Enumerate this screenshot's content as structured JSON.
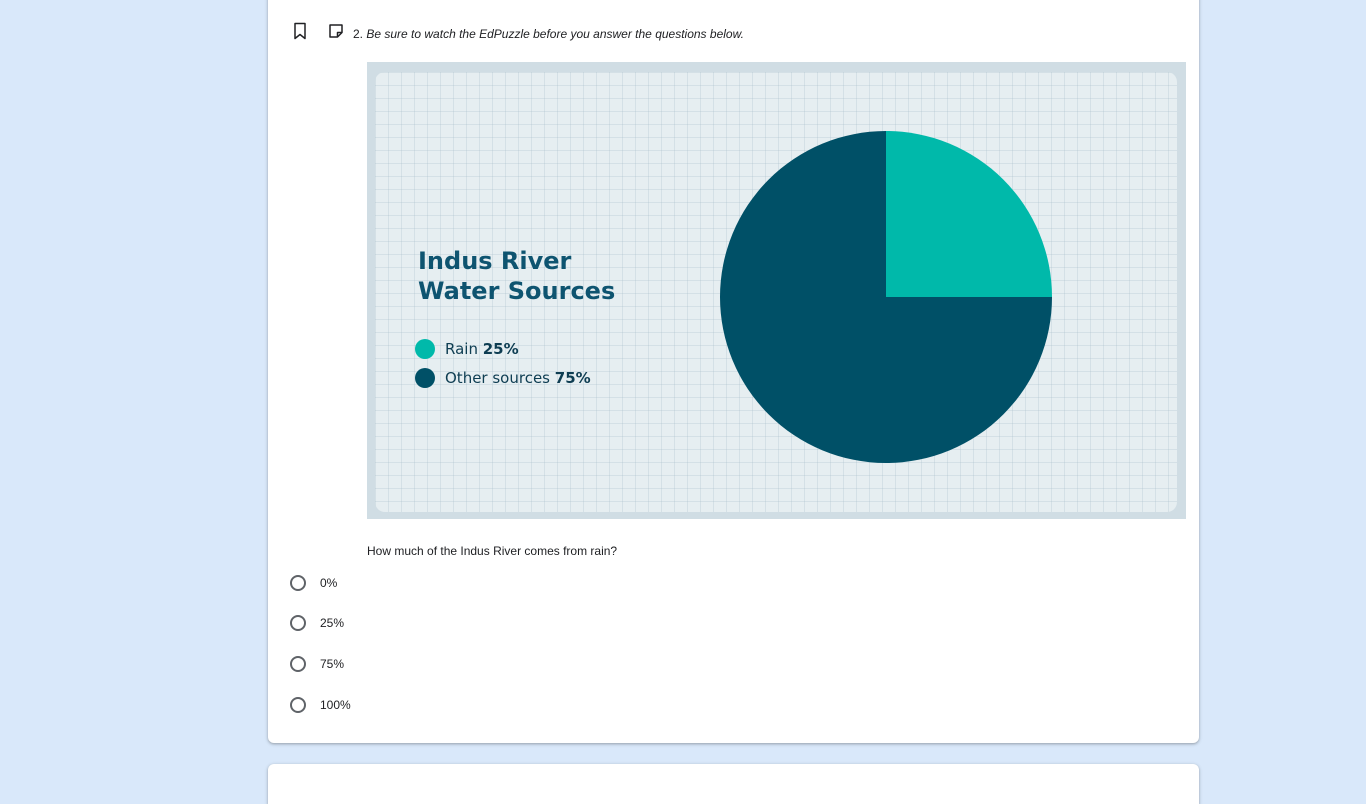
{
  "question": {
    "number": "2.",
    "text": "Be sure to watch the EdPuzzle before you answer the questions below.",
    "prompt": "How much of the Indus River comes from rain?",
    "options": [
      "0%",
      "25%",
      "75%",
      "100%"
    ]
  },
  "icons": {
    "bookmark": "bookmark-icon",
    "note": "note-icon"
  },
  "chart_data": {
    "type": "pie",
    "title_lines": [
      "Indus River",
      "Water Sources"
    ],
    "slices": [
      {
        "label": "Rain",
        "value": 25,
        "value_label": "25%",
        "color": "#00b9aa"
      },
      {
        "label": "Other sources",
        "value": 75,
        "value_label": "75%",
        "color": "#005067"
      }
    ],
    "legend_position": "left"
  },
  "colors": {
    "background": "#d9e8fa",
    "card": "#ffffff",
    "title": "#0e5470"
  }
}
